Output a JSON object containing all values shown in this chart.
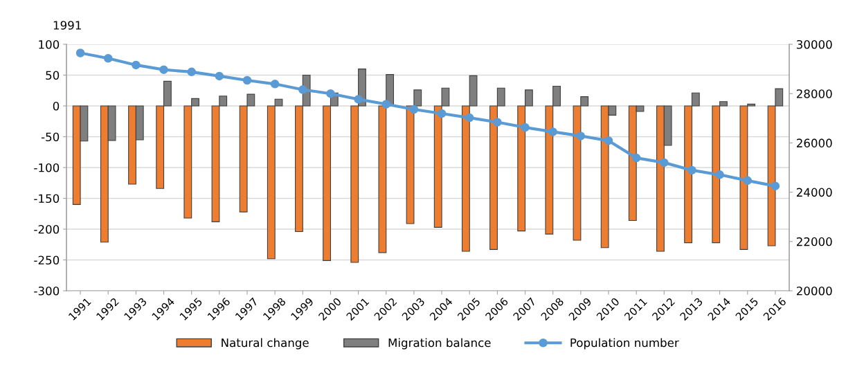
{
  "chart_data": {
    "type": "bar",
    "categories": [
      "1991",
      "1992",
      "1993",
      "1994",
      "1995",
      "1996",
      "1997",
      "1998",
      "1999",
      "2000",
      "2001",
      "2002",
      "2003",
      "2004",
      "2005",
      "2006",
      "2007",
      "2008",
      "2009",
      "2010",
      "2011",
      "2012",
      "2013",
      "2014",
      "2015",
      "2016"
    ],
    "series": [
      {
        "name": "Natural change",
        "color": "#ed7d31",
        "values": [
          -160,
          -221,
          -127,
          -134,
          -182,
          -188,
          -172,
          -248,
          -204,
          -251,
          -254,
          -238,
          -191,
          -197,
          -236,
          -233,
          -203,
          -208,
          -218,
          -230,
          -186,
          -236,
          -222,
          -222,
          -233,
          -227
        ]
      },
      {
        "name": "Migration balance",
        "color": "#7f7f7f",
        "values": [
          -57,
          -56,
          -55,
          40,
          12,
          16,
          19,
          11,
          50,
          21,
          60,
          51,
          26,
          29,
          49,
          29,
          26,
          32,
          15,
          -15,
          -9,
          -64,
          21,
          7,
          3,
          28
        ]
      },
      {
        "name": "Population number",
        "type": "line",
        "axis": "y2",
        "color": "#5b9bd5",
        "values": [
          29650,
          29430,
          29160,
          28970,
          28880,
          28710,
          28540,
          28390,
          28160,
          28000,
          27770,
          27570,
          27360,
          27190,
          27020,
          26840,
          26630,
          26450,
          26280,
          26090,
          25390,
          25200,
          24890,
          24710,
          24470,
          24250
        ]
      }
    ],
    "ylim": [
      -300,
      100
    ],
    "yticks": [
      -300,
      -250,
      -200,
      -150,
      -100,
      -50,
      0,
      50,
      100
    ],
    "y2lim": [
      20000,
      30000
    ],
    "y2ticks": [
      20000,
      22000,
      24000,
      26000,
      28000,
      30000
    ],
    "annotations": [
      "1991"
    ],
    "grid": "y",
    "legend": "bottom",
    "marker": "circle"
  }
}
